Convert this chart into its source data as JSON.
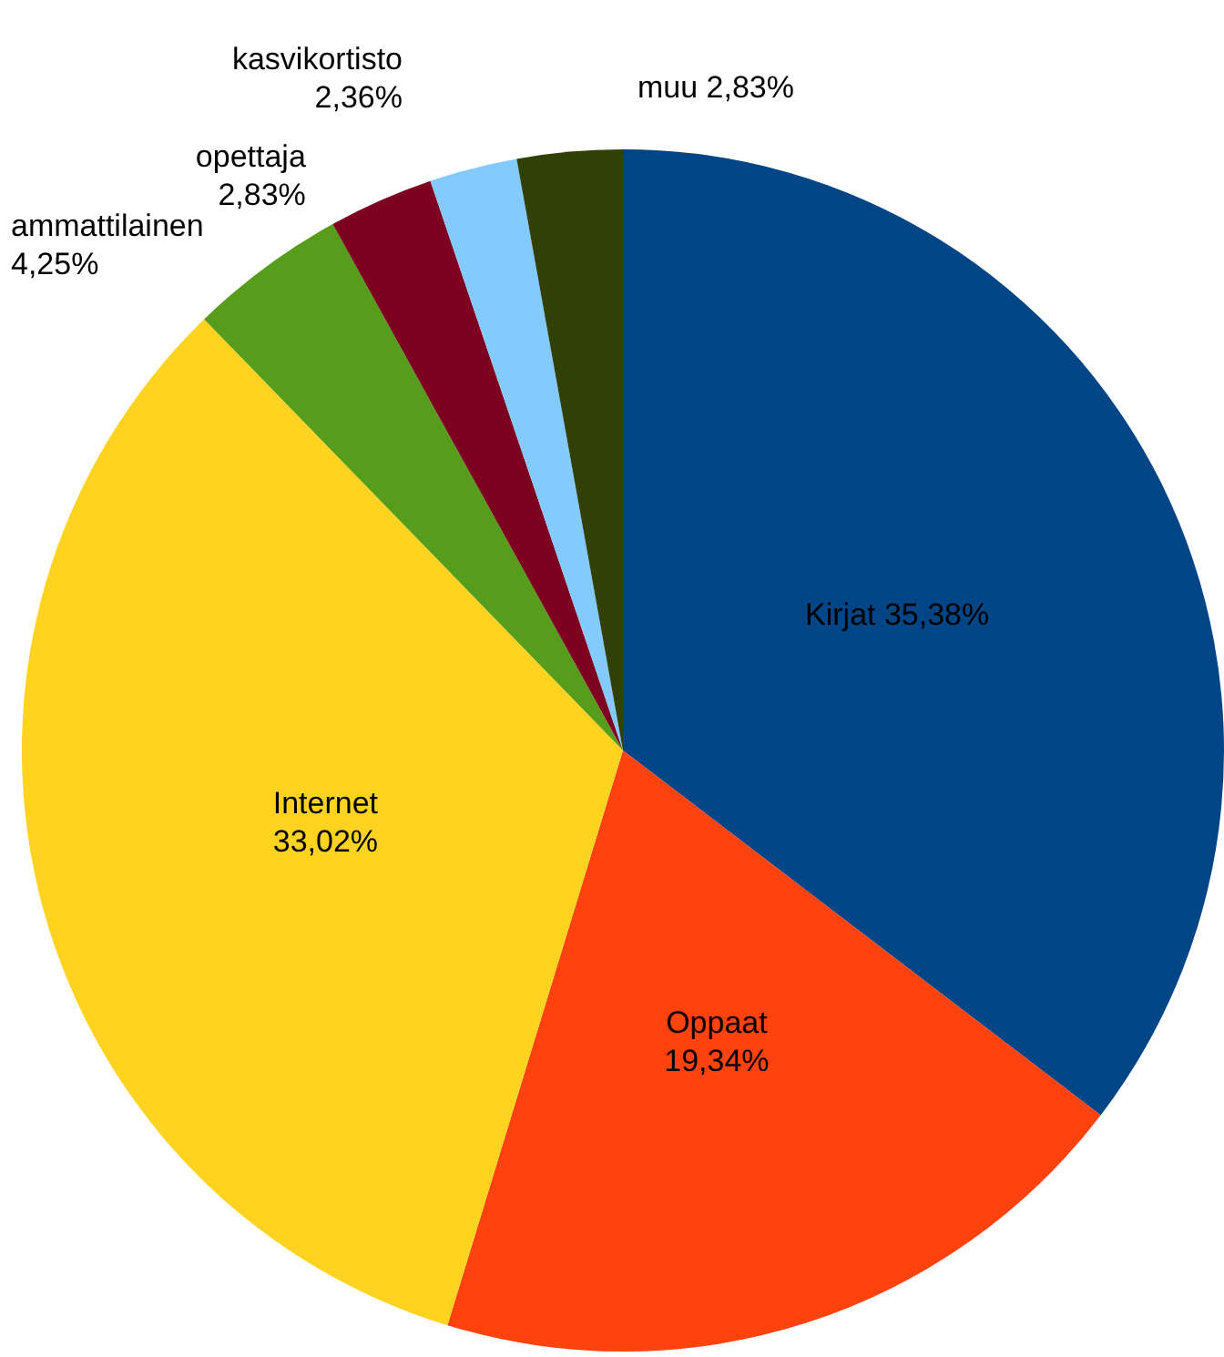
{
  "chart_data": {
    "type": "pie",
    "categories": [
      "Kirjat",
      "Oppaat",
      "Internet",
      "ammattilainen",
      "opettaja",
      "kasvikortisto",
      "muu"
    ],
    "values": [
      35.38,
      19.34,
      33.02,
      4.25,
      2.83,
      2.36,
      2.83
    ],
    "value_labels": [
      "35,38%",
      "19,34%",
      "33,02%",
      "4,25%",
      "2,83%",
      "2,36%",
      "2,83%"
    ],
    "colors": [
      "#004586",
      "#ff420e",
      "#ffd320",
      "#579d1c",
      "#7e0021",
      "#83caff",
      "#314004"
    ],
    "legend": false
  }
}
